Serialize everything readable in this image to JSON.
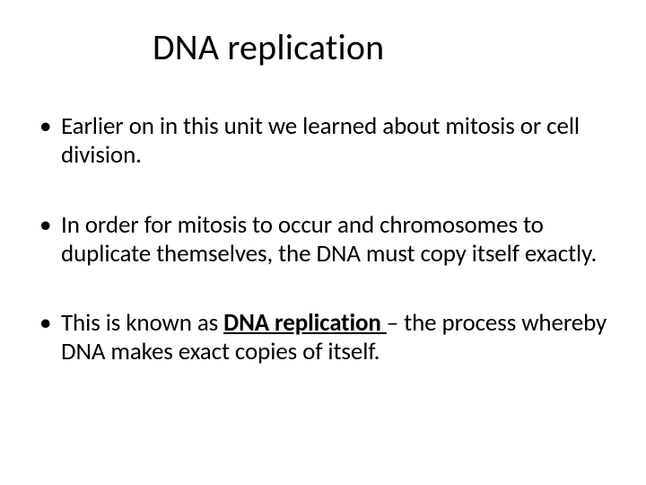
{
  "slide": {
    "title": "DNA replication",
    "bullets": [
      {
        "text": "Earlier on in this unit we learned about mitosis or cell division."
      },
      {
        "text": "In order for mitosis to occur and chromosomes to duplicate themselves, the DNA must copy itself exactly."
      },
      {
        "prefix": "This is known as ",
        "term": "DNA replication ",
        "suffix": "– the process whereby DNA makes exact copies of itself."
      }
    ]
  },
  "colors": {
    "background": "#ffffff",
    "text": "#000000"
  },
  "typography": {
    "title_fontsize": 40,
    "body_fontsize": 27,
    "font_family": "Calibri"
  }
}
